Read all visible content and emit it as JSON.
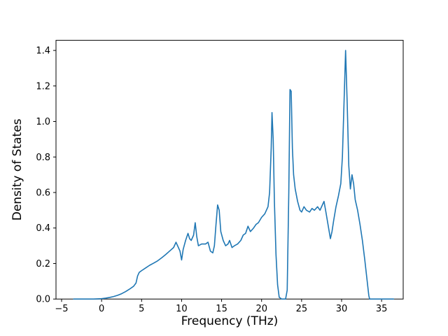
{
  "figure": {
    "background": "#ffffff",
    "xlabel": "Frequency (THz)",
    "ylabel": "Density of States"
  },
  "chart_data": {
    "type": "line",
    "title": "",
    "xlabel": "Frequency (THz)",
    "ylabel": "Density of States",
    "xlim": [
      -5.7,
      37.7
    ],
    "ylim": [
      0,
      1.457
    ],
    "xticks": [
      -5,
      0,
      5,
      10,
      15,
      20,
      25,
      30,
      35
    ],
    "yticks": [
      0.0,
      0.2,
      0.4,
      0.6,
      0.8,
      1.0,
      1.2,
      1.4
    ],
    "grid": false,
    "legend": null,
    "series": [
      {
        "name": "density-of-states",
        "color": "#1f77b4",
        "linewidth": 1.6,
        "points": [
          [
            -3.5,
            0.0
          ],
          [
            -1.0,
            0.0
          ],
          [
            0.0,
            0.002
          ],
          [
            0.5,
            0.005
          ],
          [
            1.0,
            0.009
          ],
          [
            1.5,
            0.014
          ],
          [
            2.0,
            0.021
          ],
          [
            2.5,
            0.03
          ],
          [
            3.0,
            0.042
          ],
          [
            3.5,
            0.056
          ],
          [
            4.0,
            0.072
          ],
          [
            4.3,
            0.09
          ],
          [
            4.5,
            0.13
          ],
          [
            4.7,
            0.15
          ],
          [
            5.0,
            0.16
          ],
          [
            5.5,
            0.175
          ],
          [
            6.0,
            0.19
          ],
          [
            6.5,
            0.202
          ],
          [
            7.0,
            0.215
          ],
          [
            7.5,
            0.232
          ],
          [
            8.0,
            0.25
          ],
          [
            8.5,
            0.27
          ],
          [
            9.0,
            0.29
          ],
          [
            9.3,
            0.32
          ],
          [
            9.5,
            0.3
          ],
          [
            9.8,
            0.27
          ],
          [
            10.0,
            0.22
          ],
          [
            10.2,
            0.28
          ],
          [
            10.5,
            0.33
          ],
          [
            10.8,
            0.37
          ],
          [
            11.0,
            0.34
          ],
          [
            11.2,
            0.33
          ],
          [
            11.5,
            0.36
          ],
          [
            11.7,
            0.43
          ],
          [
            11.9,
            0.35
          ],
          [
            12.1,
            0.3
          ],
          [
            12.5,
            0.31
          ],
          [
            13.0,
            0.31
          ],
          [
            13.3,
            0.32
          ],
          [
            13.6,
            0.27
          ],
          [
            13.9,
            0.26
          ],
          [
            14.1,
            0.3
          ],
          [
            14.3,
            0.42
          ],
          [
            14.5,
            0.53
          ],
          [
            14.7,
            0.5
          ],
          [
            14.9,
            0.38
          ],
          [
            15.2,
            0.33
          ],
          [
            15.5,
            0.3
          ],
          [
            15.8,
            0.31
          ],
          [
            16.0,
            0.33
          ],
          [
            16.3,
            0.29
          ],
          [
            16.6,
            0.3
          ],
          [
            17.0,
            0.31
          ],
          [
            17.4,
            0.33
          ],
          [
            17.7,
            0.36
          ],
          [
            18.0,
            0.37
          ],
          [
            18.3,
            0.41
          ],
          [
            18.6,
            0.38
          ],
          [
            19.0,
            0.4
          ],
          [
            19.3,
            0.42
          ],
          [
            19.6,
            0.43
          ],
          [
            20.0,
            0.46
          ],
          [
            20.4,
            0.48
          ],
          [
            20.8,
            0.52
          ],
          [
            21.0,
            0.6
          ],
          [
            21.2,
            0.85
          ],
          [
            21.3,
            1.05
          ],
          [
            21.45,
            0.9
          ],
          [
            21.6,
            0.55
          ],
          [
            21.8,
            0.25
          ],
          [
            22.0,
            0.08
          ],
          [
            22.2,
            0.01
          ],
          [
            22.5,
            0.0
          ],
          [
            23.0,
            0.0
          ],
          [
            23.2,
            0.05
          ],
          [
            23.4,
            0.6
          ],
          [
            23.55,
            1.18
          ],
          [
            23.7,
            1.17
          ],
          [
            23.85,
            0.85
          ],
          [
            24.0,
            0.7
          ],
          [
            24.2,
            0.62
          ],
          [
            24.5,
            0.55
          ],
          [
            24.8,
            0.5
          ],
          [
            25.0,
            0.49
          ],
          [
            25.3,
            0.52
          ],
          [
            25.6,
            0.5
          ],
          [
            26.0,
            0.49
          ],
          [
            26.3,
            0.51
          ],
          [
            26.6,
            0.5
          ],
          [
            27.0,
            0.52
          ],
          [
            27.3,
            0.5
          ],
          [
            27.6,
            0.53
          ],
          [
            27.8,
            0.55
          ],
          [
            28.0,
            0.5
          ],
          [
            28.3,
            0.42
          ],
          [
            28.6,
            0.34
          ],
          [
            28.8,
            0.38
          ],
          [
            29.0,
            0.44
          ],
          [
            29.3,
            0.52
          ],
          [
            29.6,
            0.58
          ],
          [
            29.9,
            0.65
          ],
          [
            30.1,
            0.8
          ],
          [
            30.3,
            1.1
          ],
          [
            30.5,
            1.4
          ],
          [
            30.7,
            1.1
          ],
          [
            30.9,
            0.75
          ],
          [
            31.1,
            0.62
          ],
          [
            31.3,
            0.7
          ],
          [
            31.5,
            0.65
          ],
          [
            31.7,
            0.56
          ],
          [
            32.0,
            0.5
          ],
          [
            32.3,
            0.42
          ],
          [
            32.6,
            0.33
          ],
          [
            32.9,
            0.22
          ],
          [
            33.2,
            0.1
          ],
          [
            33.4,
            0.02
          ],
          [
            33.5,
            0.0
          ],
          [
            34.5,
            0.0
          ],
          [
            36.5,
            0.0
          ]
        ]
      }
    ]
  }
}
